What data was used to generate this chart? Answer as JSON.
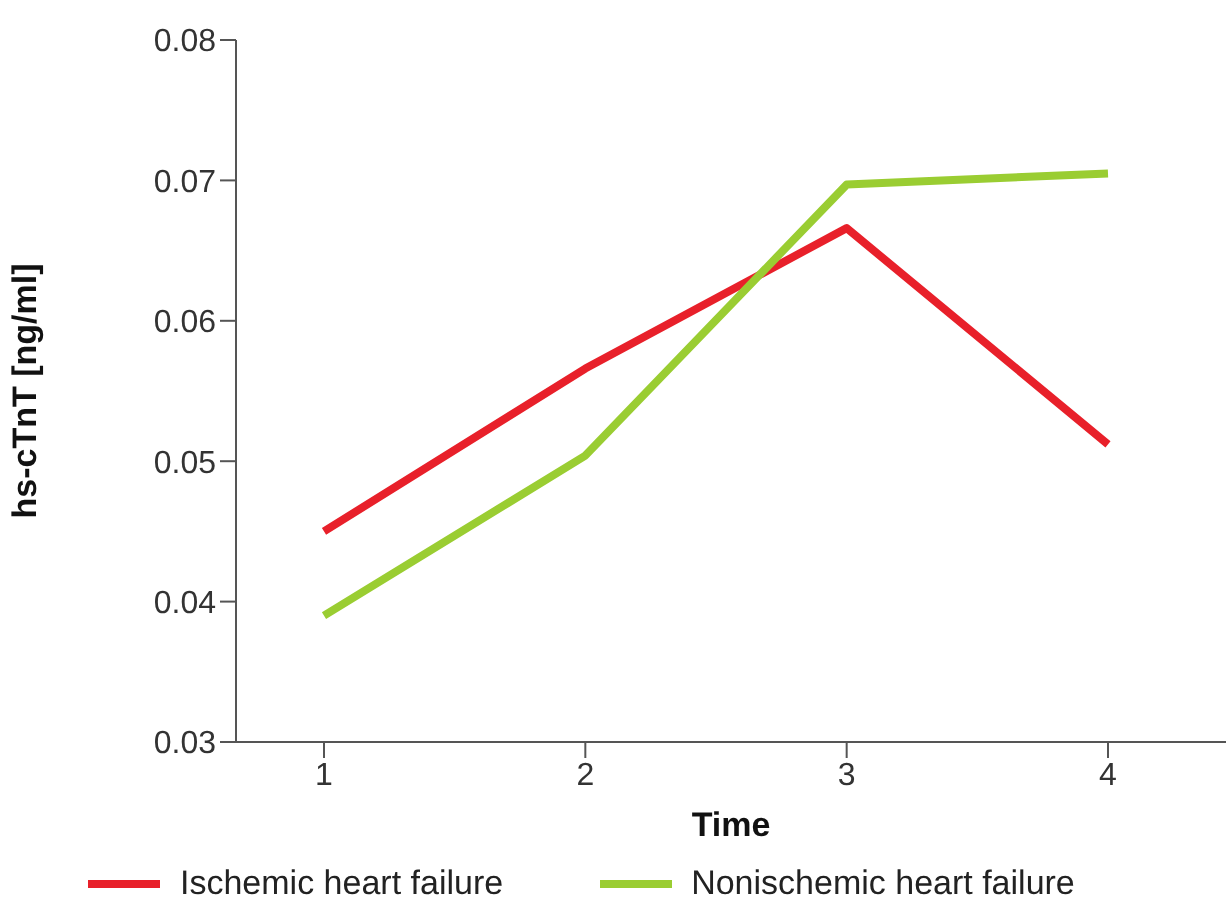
{
  "chart_data": {
    "type": "line",
    "xlabel": "Time",
    "ylabel": "hs-cTnT [ng/ml]",
    "categories": [
      "1",
      "2",
      "3",
      "4"
    ],
    "series": [
      {
        "name": "Ischemic heart failure",
        "color": "#e8202a",
        "values": [
          0.045,
          0.0566,
          0.0666,
          0.0512
        ]
      },
      {
        "name": "Nonischemic heart failure",
        "color": "#9acd32",
        "values": [
          0.039,
          0.0504,
          0.0697,
          0.0705
        ]
      }
    ],
    "ylim": [
      0.03,
      0.08
    ],
    "yticks": [
      0.03,
      0.04,
      0.05,
      0.06,
      0.07,
      0.08
    ],
    "grid": false,
    "legend": "bottom",
    "marker": "none",
    "line_style": "solid"
  }
}
